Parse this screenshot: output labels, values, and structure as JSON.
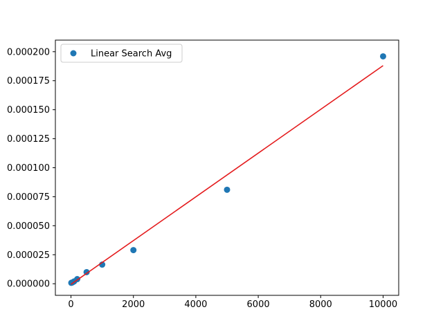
{
  "chart_data": {
    "type": "scatter",
    "title": "",
    "xlabel": "",
    "ylabel": "",
    "xlim": [
      -500,
      10500
    ],
    "ylim": [
      -1e-05,
      0.00021
    ],
    "x_ticks": [
      {
        "value": 0,
        "label": "0"
      },
      {
        "value": 2000,
        "label": "2000"
      },
      {
        "value": 4000,
        "label": "4000"
      },
      {
        "value": 6000,
        "label": "6000"
      },
      {
        "value": 8000,
        "label": "8000"
      },
      {
        "value": 10000,
        "label": "10000"
      }
    ],
    "y_ticks": [
      {
        "value": 0.0,
        "label": "0.000000"
      },
      {
        "value": 2.5e-05,
        "label": "0.000025"
      },
      {
        "value": 5e-05,
        "label": "0.000050"
      },
      {
        "value": 7.5e-05,
        "label": "0.000075"
      },
      {
        "value": 0.0001,
        "label": "0.000100"
      },
      {
        "value": 0.000125,
        "label": "0.000125"
      },
      {
        "value": 0.00015,
        "label": "0.000150"
      },
      {
        "value": 0.000175,
        "label": "0.000175"
      },
      {
        "value": 0.0002,
        "label": "0.000200"
      }
    ],
    "series": [
      {
        "name": "Linear Search Avg",
        "kind": "scatter",
        "color": "#1f77b4",
        "x": [
          10,
          50,
          100,
          200,
          500,
          1000,
          2000,
          5000,
          10000
        ],
        "y": [
          8e-07,
          1.2e-06,
          2e-06,
          4e-06,
          1e-05,
          1.65e-05,
          2.9e-05,
          8.1e-05,
          0.000196
        ]
      },
      {
        "kind": "line",
        "color": "#e41a1c",
        "x": [
          0,
          10000
        ],
        "y": [
          -5e-07,
          0.000188
        ]
      }
    ],
    "grid": false,
    "legend_position": "top-left"
  }
}
